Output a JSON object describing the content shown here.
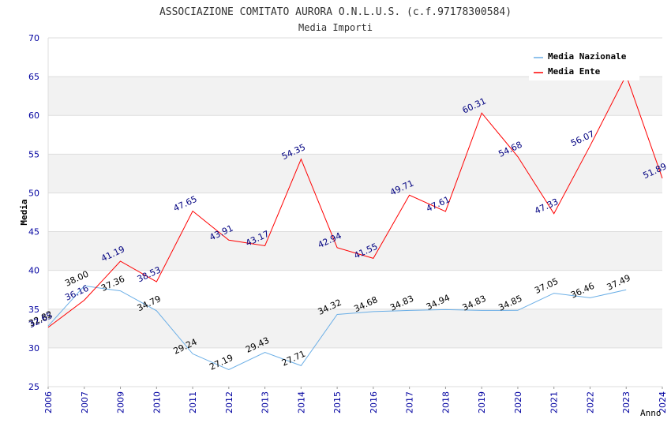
{
  "chart_data": {
    "type": "line",
    "title": "ASSOCIAZIONE COMITATO AURORA O.N.L.U.S. (c.f.97178300584)",
    "subtitle": "Media Importi",
    "xlabel": "Anno",
    "ylabel": "Media",
    "ylim": [
      25,
      70
    ],
    "yticks": [
      25,
      30,
      35,
      40,
      45,
      50,
      55,
      60,
      65,
      70
    ],
    "categories": [
      "2006",
      "2007",
      "2009",
      "2010",
      "2011",
      "2012",
      "2013",
      "2014",
      "2015",
      "2016",
      "2017",
      "2018",
      "2019",
      "2020",
      "2021",
      "2022",
      "2023",
      "2024"
    ],
    "grid": true,
    "legend_position": "top-right",
    "series": [
      {
        "name": "Media Nazionale",
        "color": "#6aaee6",
        "label_color": "#000000",
        "values": [
          32.82,
          38.0,
          37.36,
          34.79,
          29.24,
          27.19,
          29.43,
          27.71,
          34.32,
          34.68,
          34.83,
          34.94,
          34.83,
          34.85,
          37.05,
          36.46,
          37.49,
          null
        ],
        "labels": [
          "32.82",
          "38.00",
          "37.36",
          "34.79",
          "29.24",
          "27.19",
          "29.43",
          "27.71",
          "34.32",
          "34.68",
          "34.83",
          "34.94",
          "34.83",
          "34.85",
          "37.05",
          "36.46",
          "37.49",
          null
        ]
      },
      {
        "name": "Media Ente",
        "color": "#ff0000",
        "label_color": "#000080",
        "values": [
          32.65,
          36.16,
          41.19,
          38.53,
          47.65,
          43.91,
          43.17,
          54.35,
          42.94,
          41.55,
          49.71,
          47.61,
          60.31,
          54.68,
          47.33,
          56.07,
          65.17,
          51.89
        ],
        "labels": [
          "32.65",
          "36.16",
          "41.19",
          "38.53",
          "47.65",
          "43.91",
          "43.17",
          "54.35",
          "42.94",
          "41.55",
          "49.71",
          "47.61",
          "60.31",
          "54.68",
          "47.33",
          "56.07",
          null,
          "51.89"
        ]
      }
    ]
  },
  "colors": {
    "title": "#333333",
    "axis_tick": "#0000a0",
    "band": "#f2f2f2",
    "grid": "#dddddd"
  }
}
